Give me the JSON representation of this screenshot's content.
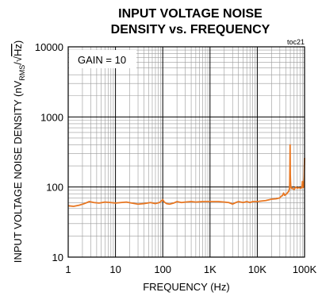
{
  "chart_data": {
    "type": "line",
    "title_line1": "INPUT VOLTAGE NOISE",
    "title_line2": "DENSITY vs. FREQUENCY",
    "figure_id": "toc21",
    "annotation": "GAIN = 10",
    "xlabel": "FREQUENCY (Hz)",
    "ylabel_main": "INPUT VOLTAGE NOISE DENSITY (nV",
    "ylabel_sub": "RMS",
    "ylabel_sep": "/",
    "ylabel_radical": "√",
    "ylabel_unit": "Hz",
    "ylabel_close": ")",
    "xscale": "log",
    "yscale": "log",
    "xlim": [
      1,
      100000
    ],
    "ylim": [
      10,
      10000
    ],
    "grid": true,
    "x_ticks": [
      {
        "value": 1,
        "label": "1"
      },
      {
        "value": 10,
        "label": "10"
      },
      {
        "value": 100,
        "label": "100"
      },
      {
        "value": 1000,
        "label": "1K"
      },
      {
        "value": 10000,
        "label": "10K"
      },
      {
        "value": 100000,
        "label": "100K"
      }
    ],
    "y_ticks": [
      {
        "value": 10,
        "label": "10"
      },
      {
        "value": 100,
        "label": "100"
      },
      {
        "value": 1000,
        "label": "1000"
      },
      {
        "value": 10000,
        "label": "10000"
      }
    ],
    "series": [
      {
        "color": "#E87722",
        "x": [
          1,
          1.3,
          1.7,
          2.2,
          2.8,
          3.5,
          4.5,
          6,
          8,
          10,
          13,
          17,
          22,
          30,
          40,
          55,
          70,
          85,
          95,
          100,
          108,
          120,
          140,
          170,
          200,
          250,
          300,
          400,
          500,
          700,
          1000,
          1500,
          2000,
          2500,
          3000,
          3500,
          4000,
          4500,
          5000,
          6000,
          7000,
          8000,
          10000,
          12000,
          15000,
          20000,
          25000,
          30000,
          32000,
          34000,
          36000,
          38000,
          40000,
          42000,
          44000,
          46000,
          47000,
          48000,
          48500,
          49000,
          49500,
          50000,
          50500,
          51000,
          52000,
          54000,
          56000,
          60000,
          65000,
          70000,
          75000,
          80000,
          84000,
          87000,
          89000,
          90000,
          91000,
          92000,
          94000,
          96000,
          98000,
          100000
        ],
        "y": [
          54,
          53,
          55,
          58,
          62,
          60,
          59,
          61,
          60,
          59,
          60,
          61,
          59,
          57,
          58,
          60,
          58,
          60,
          64,
          66,
          61,
          58,
          57,
          59,
          62,
          60,
          61,
          62,
          61,
          62,
          62,
          62,
          61,
          60,
          57,
          60,
          62,
          61,
          60,
          62,
          60,
          62,
          62,
          63,
          64,
          67,
          68,
          70,
          74,
          75,
          82,
          76,
          78,
          80,
          84,
          86,
          90,
          95,
          110,
          200,
          400,
          150,
          120,
          105,
          98,
          95,
          96,
          92,
          100,
          96,
          98,
          97,
          96,
          98,
          110,
          120,
          110,
          100,
          98,
          110,
          140,
          260
        ]
      }
    ]
  }
}
